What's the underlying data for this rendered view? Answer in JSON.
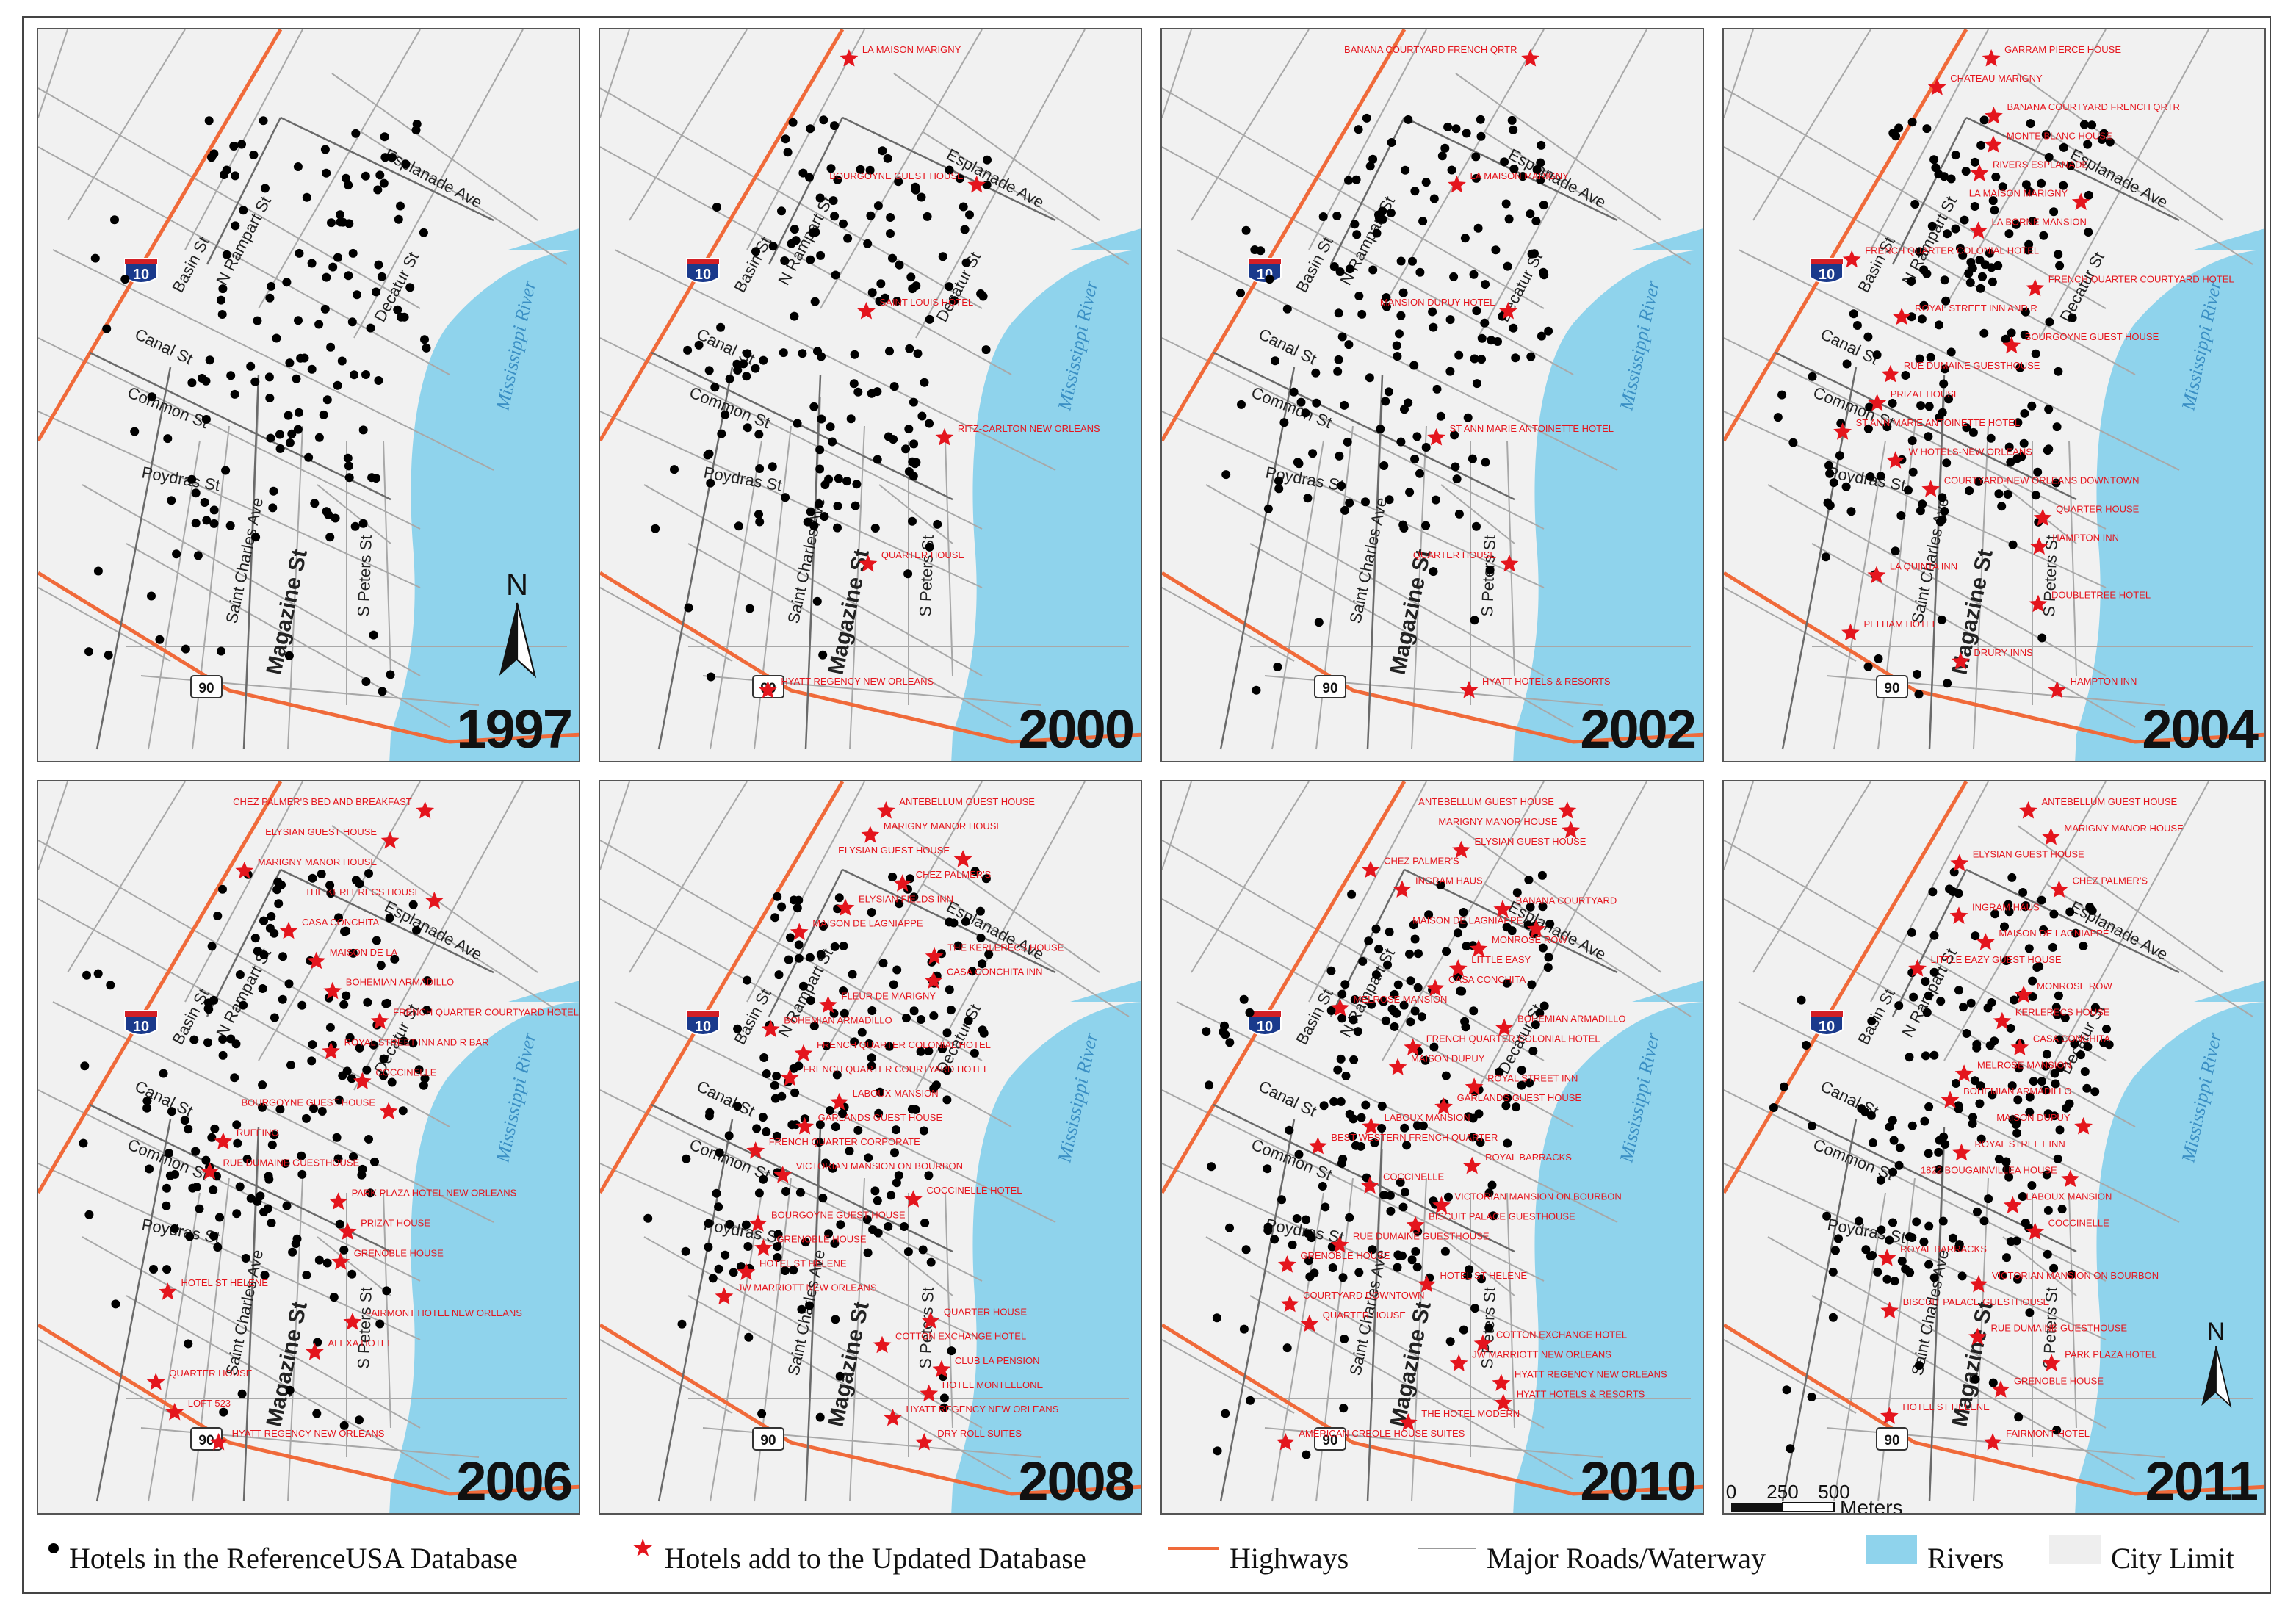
{
  "legend": {
    "hotels_ref": "Hotels in the ReferenceUSA Database",
    "hotels_added": "Hotels add to the Updated Database",
    "highways": "Highways",
    "major_roads": "Major Roads/Waterway",
    "rivers": "Rivers",
    "city_limit": "City Limit"
  },
  "colors": {
    "river": "#8fd3ec",
    "land": "#f1f1f1",
    "highway": "#f06a3a",
    "road": "#a8a8a8",
    "hotel_dot": "#000000",
    "added_star": "#e4151d",
    "label_red": "#e4151d"
  },
  "map_labels": {
    "interstate": "10",
    "us_route": "90",
    "river": "Mississippi River",
    "streets": [
      "Esplanade Ave",
      "Basin St",
      "N Rampart St",
      "Canal St",
      "Decatur St",
      "Common St",
      "Poydras St",
      "Saint Charles Ave",
      "Magazine St",
      "S Peters St"
    ]
  },
  "north_label": "N",
  "scale": {
    "ticks": [
      "0",
      "250",
      "500"
    ],
    "unit": "Meters"
  },
  "panels": [
    {
      "year": "1997",
      "has_north": true,
      "labels": []
    },
    {
      "year": "2000",
      "labels": [
        "LA MAISON MARIGNY",
        "BOURGOYNE GUEST HOUSE",
        "SAINT LOUIS HOTEL",
        "RITZ-CARLTON NEW ORLEANS",
        "QUARTER HOUSE",
        "HYATT REGENCY NEW ORLEANS"
      ]
    },
    {
      "year": "2002",
      "labels": [
        "BANANA COURTYARD FRENCH QRTR",
        "LA MAISON MARIGNY",
        "MANSION DUPUY HOTEL",
        "ST ANN MARIE ANTOINETTE HOTEL",
        "QUARTER HOUSE",
        "HYATT HOTELS & RESORTS"
      ]
    },
    {
      "year": "2004",
      "labels": [
        "GARRAM PIERCE HOUSE",
        "CHATEAU MARIGNY",
        "BANANA COURTYARD FRENCH QRTR",
        "MONTE BLANC HOUSE",
        "RIVERS ESPLANADE",
        "LA MAISON MARIGNY",
        "LA BORNE MANSION",
        "FRENCH QUARTER COLONIAL HOTEL",
        "FRENCH QUARTER COURTYARD HOTEL",
        "ROYAL STREET INN AND R",
        "BOURGOYNE GUEST HOUSE",
        "RUE DUMAINE GUESTHOUSE",
        "PRIZAT HOUSE",
        "ST ANN MARIE ANTOINETTE HOTEL",
        "W HOTELS-NEW ORLEANS",
        "COURTYARD-NEW ORLEANS DOWNTOWN",
        "QUARTER HOUSE",
        "HAMPTON INN",
        "LA QUINTA INN",
        "DOUBLETREE HOTEL",
        "PELHAM HOTEL",
        "DRURY INNS",
        "HAMPTON INN"
      ]
    },
    {
      "year": "2006",
      "labels": [
        "CHEZ PALMER'S BED AND BREAKFAST",
        "ELYSIAN GUEST HOUSE",
        "MARIGNY MANOR HOUSE",
        "THE KERLERECS HOUSE",
        "CASA CONCHITA",
        "MAISON DE LA",
        "BOHEMIAN ARMADILLO",
        "FRENCH QUARTER COURTYARD HOTEL",
        "ROYAL STREET INN AND R BAR",
        "COCCINELLE",
        "BOURGOYNE GUEST HOUSE",
        "RUFFINO",
        "RUE DUMAINE GUESTHOUSE",
        "PARK PLAZA HOTEL NEW ORLEANS",
        "PRIZAT HOUSE",
        "GRENOBLE HOUSE",
        "HOTEL ST HELENE",
        "FAIRMONT HOTEL NEW ORLEANS",
        "ALEXA HOTEL",
        "QUARTER HOUSE",
        "LOFT 523",
        "HYATT REGENCY NEW ORLEANS"
      ]
    },
    {
      "year": "2008",
      "labels": [
        "ANTEBELLUM GUEST HOUSE",
        "MARIGNY MANOR HOUSE",
        "ELYSIAN GUEST HOUSE",
        "CHEZ PALMER'S",
        "ELYSIAN FIELDS INN",
        "MAISON DE LAGNIAPPE",
        "THE KERLERECS HOUSE",
        "CASA CONCHITA INN",
        "FLEUR DE MARIGNY",
        "BOHEMIAN ARMADILLO",
        "FRENCH QUARTER COLONIAL HOTEL",
        "FRENCH QUARTER COURTYARD HOTEL",
        "LABOUX MANSION",
        "GARLANDS GUEST HOUSE",
        "FRENCH QUARTER CORPORATE",
        "VICTORIAN MANSION ON BOURBON",
        "COCCINELLE HOTEL",
        "BOURGOYNE GUEST HOUSE",
        "GRENOBLE HOUSE",
        "HOTEL ST HELENE",
        "JW MARRIOTT NEW ORLEANS",
        "QUARTER HOUSE",
        "COTTON EXCHANGE HOTEL",
        "CLUB LA PENSION",
        "HOTEL MONTELEONE",
        "HYATT REGENCY NEW ORLEANS",
        "DRY ROLL SUITES"
      ]
    },
    {
      "year": "2010",
      "labels": [
        "ANTEBELLUM GUEST HOUSE",
        "MARIGNY MANOR HOUSE",
        "ELYSIAN GUEST HOUSE",
        "CHEZ PALMER'S",
        "INGRAM HAUS",
        "BANANA COURTYARD",
        "MAISON DE LAGNIAPPE",
        "MONROSE ROW",
        "LITTLE EASY",
        "CASA CONCHITA",
        "MELROSE MANSION",
        "BOHEMIAN ARMADILLO",
        "FRENCH QUARTER COLONIAL HOTEL",
        "MAISON DUPUY",
        "ROYAL STREET INN",
        "GARLANDS GUEST HOUSE",
        "LABOUX MANSION",
        "BEST WESTERN FRENCH QUARTER",
        "ROYAL BARRACKS",
        "COCCINELLE",
        "VICTORIAN MANSION ON BOURBON",
        "BISCUIT PALACE GUESTHOUSE",
        "RUE DUMAINE GUESTHOUSE",
        "GRENOBLE HOUSE",
        "HOTEL ST HELENE",
        "COURTYARD DOWNTOWN",
        "QUARTER HOUSE",
        "COTTON EXCHANGE HOTEL",
        "JW MARRIOTT NEW ORLEANS",
        "HYATT REGENCY NEW ORLEANS",
        "HYATT HOTELS & RESORTS",
        "THE HOTEL MODERN",
        "AMERICAN CREOLE HOUSE SUITES"
      ]
    },
    {
      "year": "2011",
      "has_north": true,
      "has_scale": true,
      "labels": [
        "ANTEBELLUM GUEST HOUSE",
        "MARIGNY MANOR HOUSE",
        "ELYSIAN GUEST HOUSE",
        "CHEZ PALMER'S",
        "INGRAM HAUS",
        "MAISON DE LAGNIAPPE",
        "LITTLE EAZY GUEST HOUSE",
        "MONROSE ROW",
        "KERLERECS HOUSE",
        "CASA CONCHITA",
        "MELROSE MANSION",
        "BOHEMIAN ARMADILLO",
        "MAISON DUPUY",
        "ROYAL STREET INN",
        "1822 BOUGAINVILLEA HOUSE",
        "LABOUX MANSION",
        "COCCINELLE",
        "ROYAL BARRACKS",
        "VICTORIAN MANSION ON BOURBON",
        "BISCUIT PALACE GUESTHOUSE",
        "RUE DUMAINE GUESTHOUSE",
        "PARK PLAZA HOTEL",
        "GRENOBLE HOUSE",
        "HOTEL ST HELENE",
        "FAIRMONT HOTEL"
      ]
    }
  ]
}
